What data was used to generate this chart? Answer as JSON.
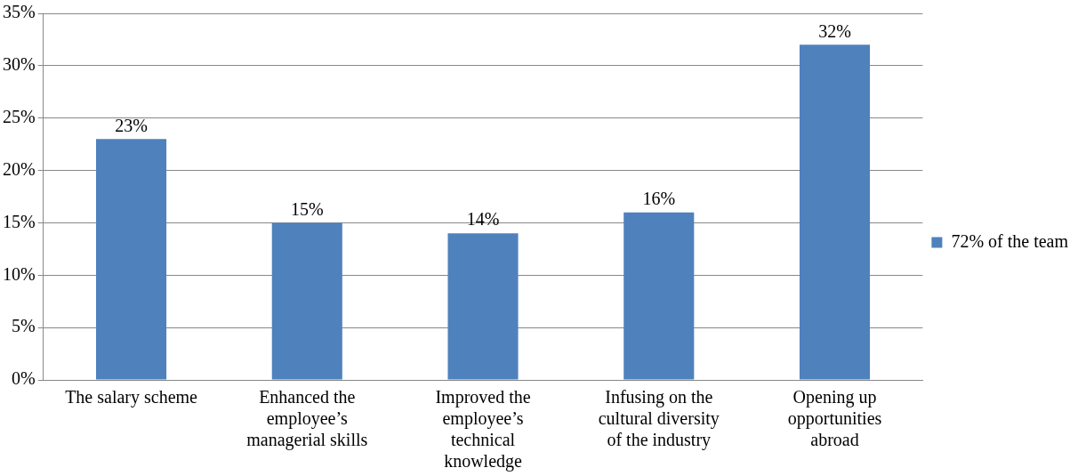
{
  "chart_data": {
    "type": "bar",
    "categories": [
      "The salary scheme",
      "Enhanced the employee’s managerial skills",
      "Improved the employee’s technical knowledge",
      "Infusing on the cultural diversity of the industry",
      "Opening up opportunities abroad"
    ],
    "series": [
      {
        "name": "72% of the team",
        "color": "#4f81bd",
        "values": [
          23,
          15,
          14,
          16,
          32
        ],
        "value_labels": [
          "23%",
          "15%",
          "14%",
          "16%",
          "32%"
        ]
      }
    ],
    "ylim": [
      0,
      35
    ],
    "yticks": [
      {
        "value": 0,
        "label": "0%"
      },
      {
        "value": 5,
        "label": "5%"
      },
      {
        "value": 10,
        "label": "10%"
      },
      {
        "value": 15,
        "label": "15%"
      },
      {
        "value": 20,
        "label": "20%"
      },
      {
        "value": 25,
        "label": "25%"
      },
      {
        "value": 30,
        "label": "30%"
      },
      {
        "value": 35,
        "label": "35%"
      }
    ],
    "grid": "y",
    "legend": "right"
  }
}
